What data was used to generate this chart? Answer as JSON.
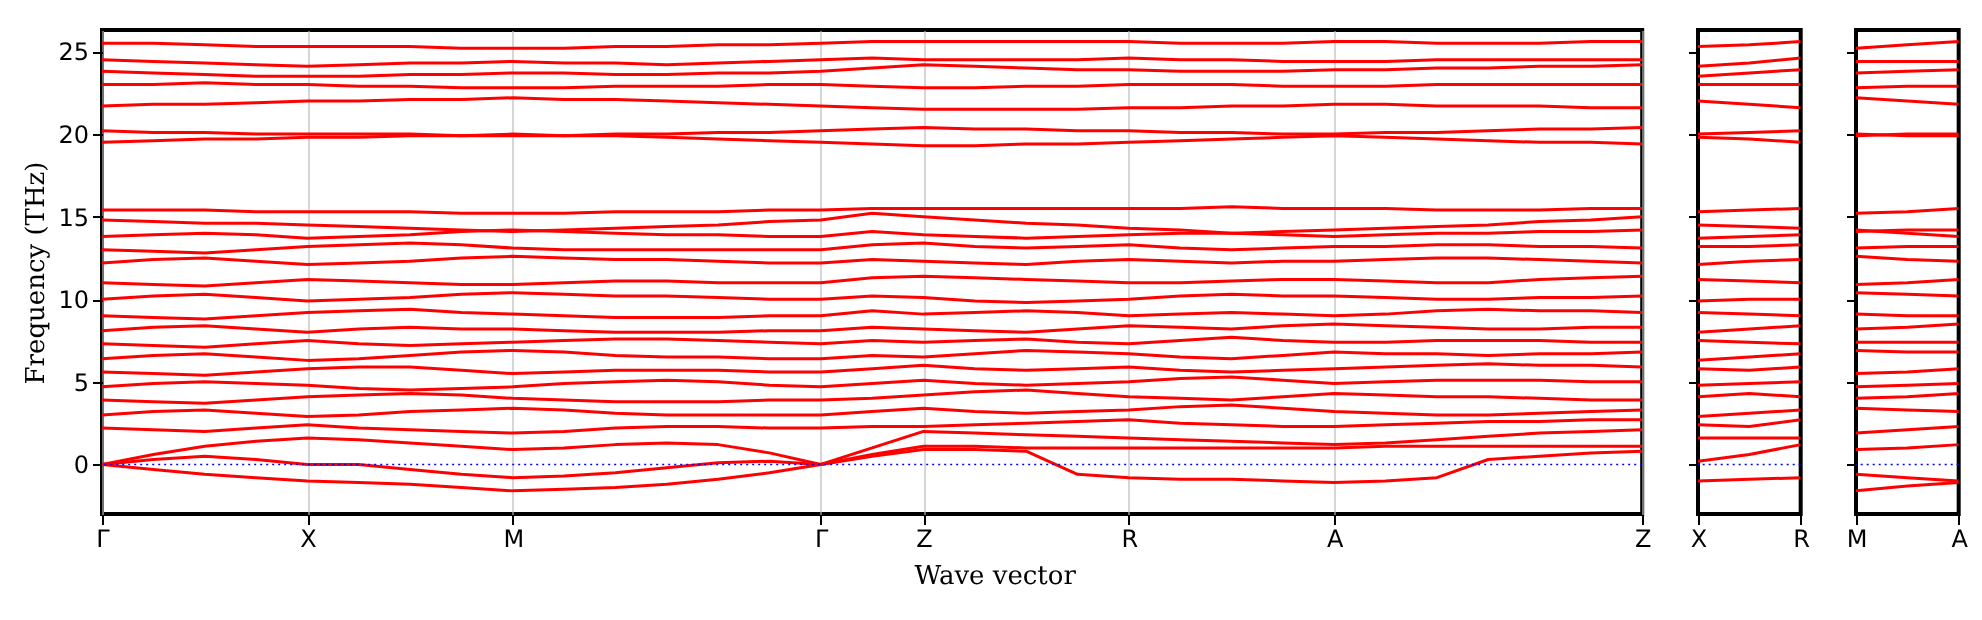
{
  "chart_data": [
    {
      "type": "line",
      "ylabel": "Frequency (THz)",
      "xlabel": "Wave vector",
      "grid": "x",
      "line_style": "solid",
      "categories": [
        "Γ",
        null,
        null,
        null,
        "X",
        null,
        null,
        null,
        "M",
        null,
        null,
        null,
        null,
        null,
        "Γ",
        null,
        "Z",
        null,
        null,
        null,
        "R",
        null,
        null,
        null,
        "A",
        null,
        null,
        null,
        null,
        null,
        "Z"
      ],
      "ylim": [
        -3,
        26.3
      ],
      "yticks": [
        0,
        5,
        10,
        15,
        20,
        25
      ],
      "ref_lines": [
        {
          "axis": "y",
          "value": 0,
          "color": "#0000ff",
          "line_style": "dotted"
        }
      ],
      "series": [
        {
          "color": "#ff0000",
          "values": [
            0,
            -0.3,
            -0.6,
            -0.8,
            -1.0,
            -1.1,
            -1.2,
            -1.4,
            -1.6,
            -1.5,
            -1.4,
            -1.2,
            -0.9,
            -0.5,
            0,
            0.5,
            0.9,
            0.9,
            0.8,
            -0.6,
            -0.8,
            -0.9,
            -0.9,
            -1.0,
            -1.1,
            -1.0,
            -0.8,
            0.3,
            0.5,
            0.7,
            0.8
          ]
        },
        {
          "color": "#ff0000",
          "values": [
            0,
            0.3,
            0.5,
            0.3,
            0,
            0,
            -0.3,
            -0.6,
            -0.8,
            -0.7,
            -0.5,
            -0.2,
            0.1,
            0.2,
            0,
            0.6,
            1.1,
            1.1,
            1.0,
            1.0,
            1.0,
            1.0,
            1.0,
            1.0,
            1.0,
            1.1,
            1.1,
            1.1,
            1.1,
            1.1,
            1.1
          ]
        },
        {
          "color": "#ff0000",
          "values": [
            0,
            0.6,
            1.1,
            1.4,
            1.6,
            1.5,
            1.3,
            1.1,
            0.9,
            1.0,
            1.2,
            1.3,
            1.2,
            0.7,
            0,
            1.0,
            2.0,
            1.9,
            1.8,
            1.7,
            1.6,
            1.5,
            1.4,
            1.3,
            1.2,
            1.3,
            1.5,
            1.7,
            1.9,
            2.0,
            2.1
          ]
        },
        {
          "color": "#ff0000",
          "values": [
            2.2,
            2.1,
            2.0,
            2.2,
            2.4,
            2.2,
            2.1,
            2.0,
            1.9,
            2.0,
            2.2,
            2.3,
            2.3,
            2.2,
            2.2,
            2.3,
            2.3,
            2.4,
            2.5,
            2.6,
            2.7,
            2.5,
            2.4,
            2.3,
            2.3,
            2.4,
            2.5,
            2.6,
            2.6,
            2.7,
            2.7
          ]
        },
        {
          "color": "#ff0000",
          "values": [
            3.0,
            3.2,
            3.3,
            3.1,
            2.9,
            3.0,
            3.2,
            3.3,
            3.4,
            3.3,
            3.1,
            3.0,
            3.0,
            3.0,
            3.0,
            3.2,
            3.4,
            3.2,
            3.1,
            3.2,
            3.3,
            3.5,
            3.6,
            3.4,
            3.2,
            3.1,
            3.0,
            3.0,
            3.1,
            3.2,
            3.3
          ]
        },
        {
          "color": "#ff0000",
          "values": [
            3.9,
            3.8,
            3.7,
            3.9,
            4.1,
            4.2,
            4.3,
            4.2,
            4.0,
            3.9,
            3.8,
            3.8,
            3.8,
            3.9,
            3.9,
            4.0,
            4.2,
            4.4,
            4.5,
            4.3,
            4.1,
            4.0,
            3.9,
            4.1,
            4.3,
            4.2,
            4.1,
            4.1,
            4.0,
            3.9,
            3.9
          ]
        },
        {
          "color": "#ff0000",
          "values": [
            4.7,
            4.9,
            5.0,
            4.9,
            4.8,
            4.6,
            4.5,
            4.6,
            4.7,
            4.9,
            5.0,
            5.1,
            5.0,
            4.8,
            4.7,
            4.9,
            5.1,
            4.9,
            4.8,
            4.9,
            5.0,
            5.2,
            5.3,
            5.1,
            4.9,
            5.0,
            5.1,
            5.1,
            5.1,
            5.0,
            5.0
          ]
        },
        {
          "color": "#ff0000",
          "values": [
            5.6,
            5.5,
            5.4,
            5.6,
            5.8,
            5.9,
            5.9,
            5.7,
            5.5,
            5.6,
            5.7,
            5.7,
            5.7,
            5.6,
            5.6,
            5.8,
            6.0,
            5.8,
            5.7,
            5.8,
            5.9,
            5.7,
            5.6,
            5.7,
            5.8,
            5.9,
            6.0,
            6.1,
            6.0,
            6.0,
            5.9
          ]
        },
        {
          "color": "#ff0000",
          "values": [
            6.4,
            6.6,
            6.7,
            6.5,
            6.3,
            6.4,
            6.6,
            6.8,
            6.9,
            6.8,
            6.6,
            6.5,
            6.5,
            6.4,
            6.4,
            6.6,
            6.5,
            6.7,
            6.9,
            6.8,
            6.7,
            6.5,
            6.4,
            6.6,
            6.8,
            6.7,
            6.7,
            6.6,
            6.7,
            6.7,
            6.8
          ]
        },
        {
          "color": "#ff0000",
          "values": [
            7.3,
            7.2,
            7.1,
            7.3,
            7.5,
            7.3,
            7.2,
            7.3,
            7.4,
            7.5,
            7.6,
            7.6,
            7.5,
            7.4,
            7.3,
            7.5,
            7.4,
            7.5,
            7.6,
            7.4,
            7.3,
            7.5,
            7.7,
            7.5,
            7.4,
            7.4,
            7.5,
            7.5,
            7.5,
            7.4,
            7.4
          ]
        },
        {
          "color": "#ff0000",
          "values": [
            8.1,
            8.3,
            8.4,
            8.2,
            8.0,
            8.2,
            8.3,
            8.2,
            8.2,
            8.1,
            8.0,
            8.0,
            8.0,
            8.1,
            8.1,
            8.3,
            8.2,
            8.1,
            8.0,
            8.2,
            8.4,
            8.3,
            8.2,
            8.4,
            8.5,
            8.4,
            8.3,
            8.2,
            8.2,
            8.3,
            8.3
          ]
        },
        {
          "color": "#ff0000",
          "values": [
            9.0,
            8.9,
            8.8,
            9.0,
            9.2,
            9.3,
            9.4,
            9.2,
            9.1,
            9.0,
            8.9,
            8.9,
            8.9,
            9.0,
            9.0,
            9.3,
            9.1,
            9.2,
            9.3,
            9.2,
            9.0,
            9.1,
            9.2,
            9.1,
            9.0,
            9.1,
            9.3,
            9.4,
            9.3,
            9.3,
            9.2
          ]
        },
        {
          "color": "#ff0000",
          "values": [
            10.0,
            10.2,
            10.3,
            10.1,
            9.9,
            10.0,
            10.1,
            10.3,
            10.4,
            10.3,
            10.2,
            10.2,
            10.1,
            10.0,
            10.0,
            10.2,
            10.1,
            9.9,
            9.8,
            9.9,
            10.0,
            10.2,
            10.3,
            10.2,
            10.2,
            10.1,
            10.0,
            10.0,
            10.1,
            10.1,
            10.2
          ]
        },
        {
          "color": "#ff0000",
          "values": [
            11.0,
            10.9,
            10.8,
            11.0,
            11.2,
            11.1,
            11.0,
            10.9,
            10.9,
            11.0,
            11.1,
            11.1,
            11.0,
            11.0,
            11.0,
            11.3,
            11.4,
            11.3,
            11.2,
            11.1,
            11.0,
            11.0,
            11.1,
            11.2,
            11.2,
            11.1,
            11.0,
            11.0,
            11.2,
            11.3,
            11.4
          ]
        },
        {
          "color": "#ff0000",
          "values": [
            12.2,
            12.4,
            12.5,
            12.3,
            12.1,
            12.2,
            12.3,
            12.5,
            12.6,
            12.5,
            12.4,
            12.4,
            12.3,
            12.2,
            12.2,
            12.4,
            12.3,
            12.2,
            12.1,
            12.3,
            12.4,
            12.3,
            12.2,
            12.3,
            12.3,
            12.4,
            12.5,
            12.5,
            12.4,
            12.3,
            12.2
          ]
        },
        {
          "color": "#ff0000",
          "values": [
            13.0,
            12.9,
            12.8,
            13.0,
            13.2,
            13.3,
            13.4,
            13.3,
            13.1,
            13.0,
            13.0,
            13.0,
            13.0,
            13.0,
            13.0,
            13.3,
            13.4,
            13.2,
            13.1,
            13.2,
            13.3,
            13.1,
            13.0,
            13.1,
            13.2,
            13.2,
            13.3,
            13.3,
            13.2,
            13.2,
            13.1
          ]
        },
        {
          "color": "#ff0000",
          "values": [
            13.8,
            13.9,
            14.0,
            13.9,
            13.7,
            13.8,
            13.9,
            14.1,
            14.2,
            14.1,
            14.0,
            13.9,
            13.9,
            13.8,
            13.8,
            14.1,
            13.9,
            13.8,
            13.7,
            13.8,
            13.9,
            14.0,
            14.0,
            13.9,
            13.8,
            13.9,
            14.0,
            14.0,
            14.1,
            14.1,
            14.2
          ]
        },
        {
          "color": "#ff0000",
          "values": [
            14.8,
            14.7,
            14.6,
            14.6,
            14.5,
            14.4,
            14.3,
            14.2,
            14.1,
            14.2,
            14.3,
            14.4,
            14.5,
            14.7,
            14.8,
            15.2,
            15.0,
            14.8,
            14.6,
            14.5,
            14.3,
            14.2,
            14.0,
            14.1,
            14.2,
            14.3,
            14.4,
            14.5,
            14.7,
            14.8,
            15.0
          ]
        },
        {
          "color": "#ff0000",
          "values": [
            15.4,
            15.4,
            15.4,
            15.3,
            15.3,
            15.3,
            15.3,
            15.2,
            15.2,
            15.2,
            15.3,
            15.3,
            15.3,
            15.4,
            15.4,
            15.5,
            15.5,
            15.5,
            15.5,
            15.5,
            15.5,
            15.5,
            15.6,
            15.5,
            15.5,
            15.5,
            15.4,
            15.4,
            15.4,
            15.5,
            15.5
          ]
        },
        {
          "color": "#ff0000",
          "values": [
            19.5,
            19.6,
            19.7,
            19.7,
            19.8,
            19.8,
            19.9,
            19.9,
            20.0,
            19.9,
            19.9,
            19.8,
            19.7,
            19.6,
            19.5,
            19.4,
            19.3,
            19.3,
            19.4,
            19.4,
            19.5,
            19.6,
            19.7,
            19.8,
            19.9,
            19.8,
            19.7,
            19.6,
            19.5,
            19.5,
            19.4
          ]
        },
        {
          "color": "#ff0000",
          "values": [
            20.2,
            20.1,
            20.1,
            20.0,
            20.0,
            20.0,
            20.0,
            19.9,
            19.9,
            19.9,
            20.0,
            20.0,
            20.1,
            20.1,
            20.2,
            20.3,
            20.4,
            20.3,
            20.3,
            20.2,
            20.2,
            20.1,
            20.1,
            20.0,
            20.0,
            20.1,
            20.1,
            20.2,
            20.3,
            20.3,
            20.4
          ]
        },
        {
          "color": "#ff0000",
          "values": [
            21.7,
            21.8,
            21.8,
            21.9,
            22.0,
            22.0,
            22.1,
            22.1,
            22.2,
            22.1,
            22.1,
            22.0,
            21.9,
            21.8,
            21.7,
            21.6,
            21.5,
            21.5,
            21.5,
            21.5,
            21.6,
            21.6,
            21.7,
            21.7,
            21.8,
            21.8,
            21.7,
            21.7,
            21.7,
            21.6,
            21.6
          ]
        },
        {
          "color": "#ff0000",
          "values": [
            23.0,
            23.0,
            23.1,
            23.0,
            23.0,
            22.9,
            22.9,
            22.8,
            22.8,
            22.8,
            22.9,
            22.9,
            22.9,
            23.0,
            23.0,
            22.9,
            22.8,
            22.8,
            22.9,
            22.9,
            23.0,
            23.0,
            23.0,
            22.9,
            22.9,
            22.9,
            23.0,
            23.0,
            23.0,
            23.0,
            23.0
          ]
        },
        {
          "color": "#ff0000",
          "values": [
            23.8,
            23.7,
            23.6,
            23.5,
            23.5,
            23.5,
            23.6,
            23.6,
            23.7,
            23.7,
            23.6,
            23.6,
            23.7,
            23.7,
            23.8,
            24.0,
            24.2,
            24.1,
            24.0,
            23.9,
            23.9,
            23.8,
            23.8,
            23.8,
            23.9,
            23.9,
            24.0,
            24.0,
            24.1,
            24.1,
            24.2
          ]
        },
        {
          "color": "#ff0000",
          "values": [
            24.5,
            24.4,
            24.3,
            24.2,
            24.1,
            24.2,
            24.3,
            24.3,
            24.4,
            24.3,
            24.3,
            24.2,
            24.3,
            24.4,
            24.5,
            24.6,
            24.5,
            24.5,
            24.5,
            24.5,
            24.6,
            24.5,
            24.5,
            24.4,
            24.4,
            24.4,
            24.5,
            24.5,
            24.5,
            24.5,
            24.5
          ]
        },
        {
          "color": "#ff0000",
          "values": [
            25.5,
            25.5,
            25.4,
            25.3,
            25.3,
            25.3,
            25.3,
            25.2,
            25.2,
            25.2,
            25.3,
            25.3,
            25.4,
            25.4,
            25.5,
            25.6,
            25.6,
            25.6,
            25.6,
            25.6,
            25.6,
            25.5,
            25.5,
            25.5,
            25.6,
            25.6,
            25.5,
            25.5,
            25.5,
            25.6,
            25.6
          ]
        }
      ]
    },
    {
      "type": "line",
      "line_style": "solid",
      "tick_labels": "x",
      "categories": [
        "X",
        null,
        "R"
      ],
      "ylim": [
        -3,
        26.3
      ],
      "yticks": [
        0,
        5,
        10,
        15,
        20,
        25
      ],
      "ref_lines": [
        {
          "axis": "y",
          "value": 0,
          "color": "#0000ff",
          "line_style": "dotted"
        }
      ],
      "series": [
        {
          "color": "#ff0000",
          "values": [
            -1.0,
            -0.9,
            -0.8
          ]
        },
        {
          "color": "#ff0000",
          "values": [
            0.2,
            0.6,
            1.2
          ]
        },
        {
          "color": "#ff0000",
          "values": [
            1.6,
            1.6,
            1.6
          ]
        },
        {
          "color": "#ff0000",
          "values": [
            2.4,
            2.3,
            2.7
          ]
        },
        {
          "color": "#ff0000",
          "values": [
            2.9,
            3.1,
            3.3
          ]
        },
        {
          "color": "#ff0000",
          "values": [
            4.1,
            4.3,
            4.1
          ]
        },
        {
          "color": "#ff0000",
          "values": [
            4.8,
            4.9,
            5.0
          ]
        },
        {
          "color": "#ff0000",
          "values": [
            5.8,
            5.7,
            5.9
          ]
        },
        {
          "color": "#ff0000",
          "values": [
            6.3,
            6.5,
            6.7
          ]
        },
        {
          "color": "#ff0000",
          "values": [
            7.5,
            7.4,
            7.3
          ]
        },
        {
          "color": "#ff0000",
          "values": [
            8.0,
            8.2,
            8.4
          ]
        },
        {
          "color": "#ff0000",
          "values": [
            9.2,
            9.1,
            9.0
          ]
        },
        {
          "color": "#ff0000",
          "values": [
            9.9,
            10.0,
            10.0
          ]
        },
        {
          "color": "#ff0000",
          "values": [
            11.2,
            11.1,
            11.0
          ]
        },
        {
          "color": "#ff0000",
          "values": [
            12.1,
            12.3,
            12.4
          ]
        },
        {
          "color": "#ff0000",
          "values": [
            13.2,
            13.2,
            13.3
          ]
        },
        {
          "color": "#ff0000",
          "values": [
            13.7,
            13.8,
            13.9
          ]
        },
        {
          "color": "#ff0000",
          "values": [
            14.5,
            14.4,
            14.3
          ]
        },
        {
          "color": "#ff0000",
          "values": [
            15.3,
            15.4,
            15.5
          ]
        },
        {
          "color": "#ff0000",
          "values": [
            19.8,
            19.7,
            19.5
          ]
        },
        {
          "color": "#ff0000",
          "values": [
            20.0,
            20.1,
            20.2
          ]
        },
        {
          "color": "#ff0000",
          "values": [
            22.0,
            21.8,
            21.6
          ]
        },
        {
          "color": "#ff0000",
          "values": [
            23.0,
            23.0,
            23.0
          ]
        },
        {
          "color": "#ff0000",
          "values": [
            23.5,
            23.7,
            23.9
          ]
        },
        {
          "color": "#ff0000",
          "values": [
            24.1,
            24.3,
            24.6
          ]
        },
        {
          "color": "#ff0000",
          "values": [
            25.3,
            25.4,
            25.6
          ]
        }
      ]
    },
    {
      "type": "line",
      "line_style": "solid",
      "tick_labels": "x",
      "categories": [
        "M",
        null,
        "A"
      ],
      "ylim": [
        -3,
        26.3
      ],
      "yticks": [
        0,
        5,
        10,
        15,
        20,
        25
      ],
      "ref_lines": [
        {
          "axis": "y",
          "value": 0,
          "color": "#0000ff",
          "line_style": "dotted"
        }
      ],
      "series": [
        {
          "color": "#ff0000",
          "values": [
            -1.6,
            -1.3,
            -1.1
          ]
        },
        {
          "color": "#ff0000",
          "values": [
            -0.6,
            -0.8,
            -1.0
          ]
        },
        {
          "color": "#ff0000",
          "values": [
            0.9,
            1.0,
            1.2
          ]
        },
        {
          "color": "#ff0000",
          "values": [
            1.9,
            2.1,
            2.3
          ]
        },
        {
          "color": "#ff0000",
          "values": [
            3.4,
            3.3,
            3.2
          ]
        },
        {
          "color": "#ff0000",
          "values": [
            4.0,
            4.1,
            4.3
          ]
        },
        {
          "color": "#ff0000",
          "values": [
            4.7,
            4.8,
            4.9
          ]
        },
        {
          "color": "#ff0000",
          "values": [
            5.5,
            5.6,
            5.8
          ]
        },
        {
          "color": "#ff0000",
          "values": [
            6.9,
            6.8,
            6.8
          ]
        },
        {
          "color": "#ff0000",
          "values": [
            7.4,
            7.4,
            7.4
          ]
        },
        {
          "color": "#ff0000",
          "values": [
            8.2,
            8.3,
            8.5
          ]
        },
        {
          "color": "#ff0000",
          "values": [
            9.1,
            9.0,
            9.0
          ]
        },
        {
          "color": "#ff0000",
          "values": [
            10.4,
            10.3,
            10.2
          ]
        },
        {
          "color": "#ff0000",
          "values": [
            10.9,
            11.0,
            11.2
          ]
        },
        {
          "color": "#ff0000",
          "values": [
            12.6,
            12.4,
            12.3
          ]
        },
        {
          "color": "#ff0000",
          "values": [
            13.1,
            13.2,
            13.2
          ]
        },
        {
          "color": "#ff0000",
          "values": [
            14.2,
            14.0,
            13.8
          ]
        },
        {
          "color": "#ff0000",
          "values": [
            14.1,
            14.2,
            14.2
          ]
        },
        {
          "color": "#ff0000",
          "values": [
            15.2,
            15.3,
            15.5
          ]
        },
        {
          "color": "#ff0000",
          "values": [
            20.0,
            19.9,
            19.9
          ]
        },
        {
          "color": "#ff0000",
          "values": [
            19.9,
            20.0,
            20.0
          ]
        },
        {
          "color": "#ff0000",
          "values": [
            22.2,
            22.0,
            21.8
          ]
        },
        {
          "color": "#ff0000",
          "values": [
            22.8,
            22.9,
            22.9
          ]
        },
        {
          "color": "#ff0000",
          "values": [
            23.7,
            23.8,
            23.9
          ]
        },
        {
          "color": "#ff0000",
          "values": [
            24.4,
            24.4,
            24.4
          ]
        },
        {
          "color": "#ff0000",
          "values": [
            25.2,
            25.4,
            25.6
          ]
        }
      ]
    }
  ]
}
